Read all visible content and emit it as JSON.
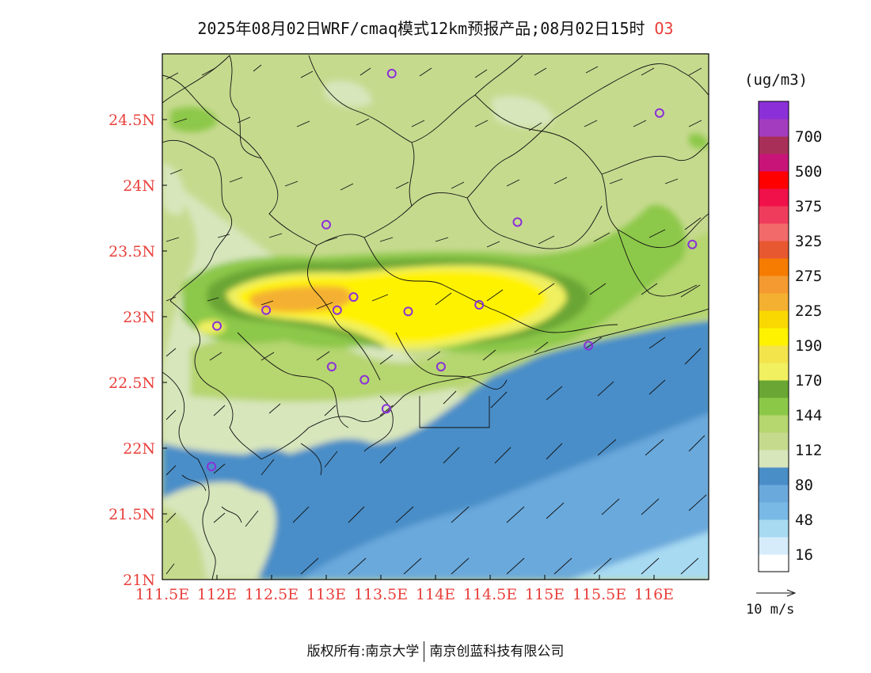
{
  "title": {
    "main": "2025年08月02日WRF/cmaq模式12km预报产品;08月02日15时",
    "variable": "O3"
  },
  "colorbar": {
    "unit": "(ug/m3)",
    "bins": [
      {
        "color": "#ffffff"
      },
      {
        "color": "#d6ecfa"
      },
      {
        "color": "#a8daf2"
      },
      {
        "color": "#78b9e6"
      },
      {
        "color": "#6aa9dc"
      },
      {
        "color": "#4a8ec8"
      },
      {
        "color": "#d8e6bc"
      },
      {
        "color": "#c6da8e"
      },
      {
        "color": "#b6d670"
      },
      {
        "color": "#8cc848"
      },
      {
        "color": "#6aa634"
      },
      {
        "color": "#f0f060"
      },
      {
        "color": "#f4e44c"
      },
      {
        "color": "#fff200"
      },
      {
        "color": "#f8d800"
      },
      {
        "color": "#f4b030"
      },
      {
        "color": "#f49a30"
      },
      {
        "color": "#f57c00"
      },
      {
        "color": "#e85830"
      },
      {
        "color": "#f26a6a"
      },
      {
        "color": "#f03c5c"
      },
      {
        "color": "#f0104a"
      },
      {
        "color": "#ff0000"
      },
      {
        "color": "#c81478"
      },
      {
        "color": "#a83058"
      },
      {
        "color": "#a43cc0"
      },
      {
        "color": "#8b30d8"
      }
    ],
    "labels": [
      "16",
      "48",
      "80",
      "112",
      "144",
      "170",
      "190",
      "225",
      "275",
      "325",
      "375",
      "500",
      "700"
    ]
  },
  "chart_data": {
    "type": "map",
    "x_ticks": [
      "111.5E",
      "112E",
      "112.5E",
      "113E",
      "113.5E",
      "114E",
      "114.5E",
      "115E",
      "115.5E",
      "116E"
    ],
    "y_ticks": [
      "21N",
      "21.5N",
      "22N",
      "22.5N",
      "23N",
      "23.5N",
      "24N",
      "24.5N"
    ],
    "x_range": [
      111.5,
      116.5
    ],
    "y_range": [
      21.0,
      25.0
    ],
    "stations": [
      {
        "lon": 113.6,
        "lat": 24.85
      },
      {
        "lon": 116.05,
        "lat": 24.55
      },
      {
        "lon": 113.0,
        "lat": 23.7
      },
      {
        "lon": 114.75,
        "lat": 23.72
      },
      {
        "lon": 116.35,
        "lat": 23.55
      },
      {
        "lon": 112.45,
        "lat": 23.05
      },
      {
        "lon": 113.25,
        "lat": 23.15
      },
      {
        "lon": 113.1,
        "lat": 23.05
      },
      {
        "lon": 113.75,
        "lat": 23.04
      },
      {
        "lon": 114.4,
        "lat": 23.09
      },
      {
        "lon": 112.0,
        "lat": 22.93
      },
      {
        "lon": 115.4,
        "lat": 22.78
      },
      {
        "lon": 113.05,
        "lat": 22.62
      },
      {
        "lon": 114.05,
        "lat": 22.62
      },
      {
        "lon": 113.35,
        "lat": 22.52
      },
      {
        "lon": 113.55,
        "lat": 22.3
      },
      {
        "lon": 111.95,
        "lat": 21.86
      }
    ],
    "wind_vector_reference": "10 m/s",
    "wind_direction": "southwest"
  },
  "footer": {
    "left": "版权所有:南京大学",
    "right": "南京创蓝科技有限公司"
  }
}
